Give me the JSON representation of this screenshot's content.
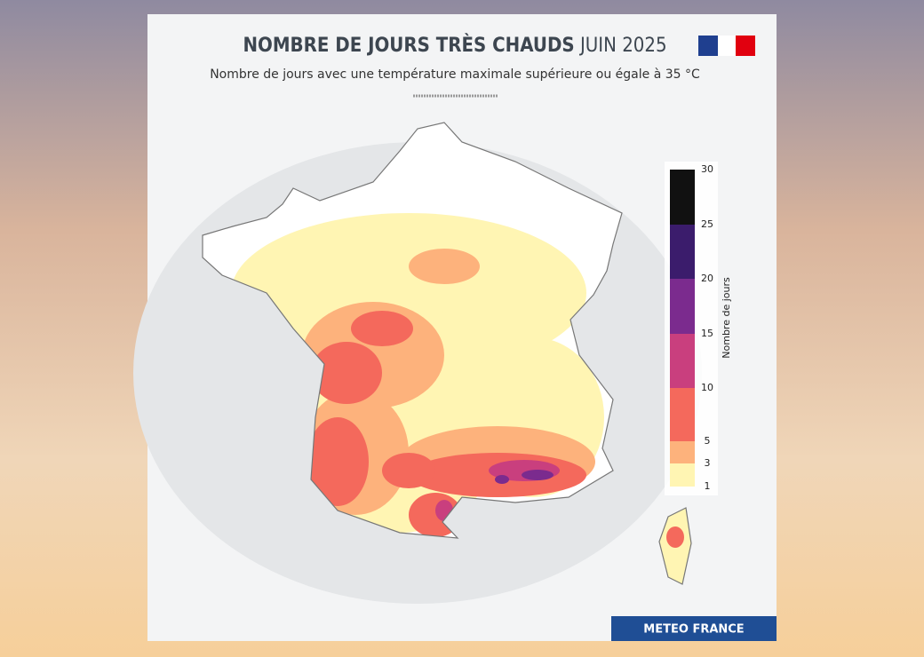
{
  "header": {
    "title_bold": "NOMBRE DE JOURS TRÈS CHAUDS",
    "title_light": "JUIN 2025",
    "subtitle": "Nombre de jours avec une température maximale supérieure ou égale à 35 °C"
  },
  "legend": {
    "title": "Nombre de jours",
    "ticks": [
      1,
      3,
      5,
      10,
      15,
      20,
      25,
      30
    ],
    "colors": [
      "#fff5b3",
      "#fdb27c",
      "#f4695c",
      "#c93f7e",
      "#7b2b8e",
      "#3b1c6c",
      "#111111"
    ]
  },
  "footer": {
    "brand": "METEO FRANCE"
  }
}
